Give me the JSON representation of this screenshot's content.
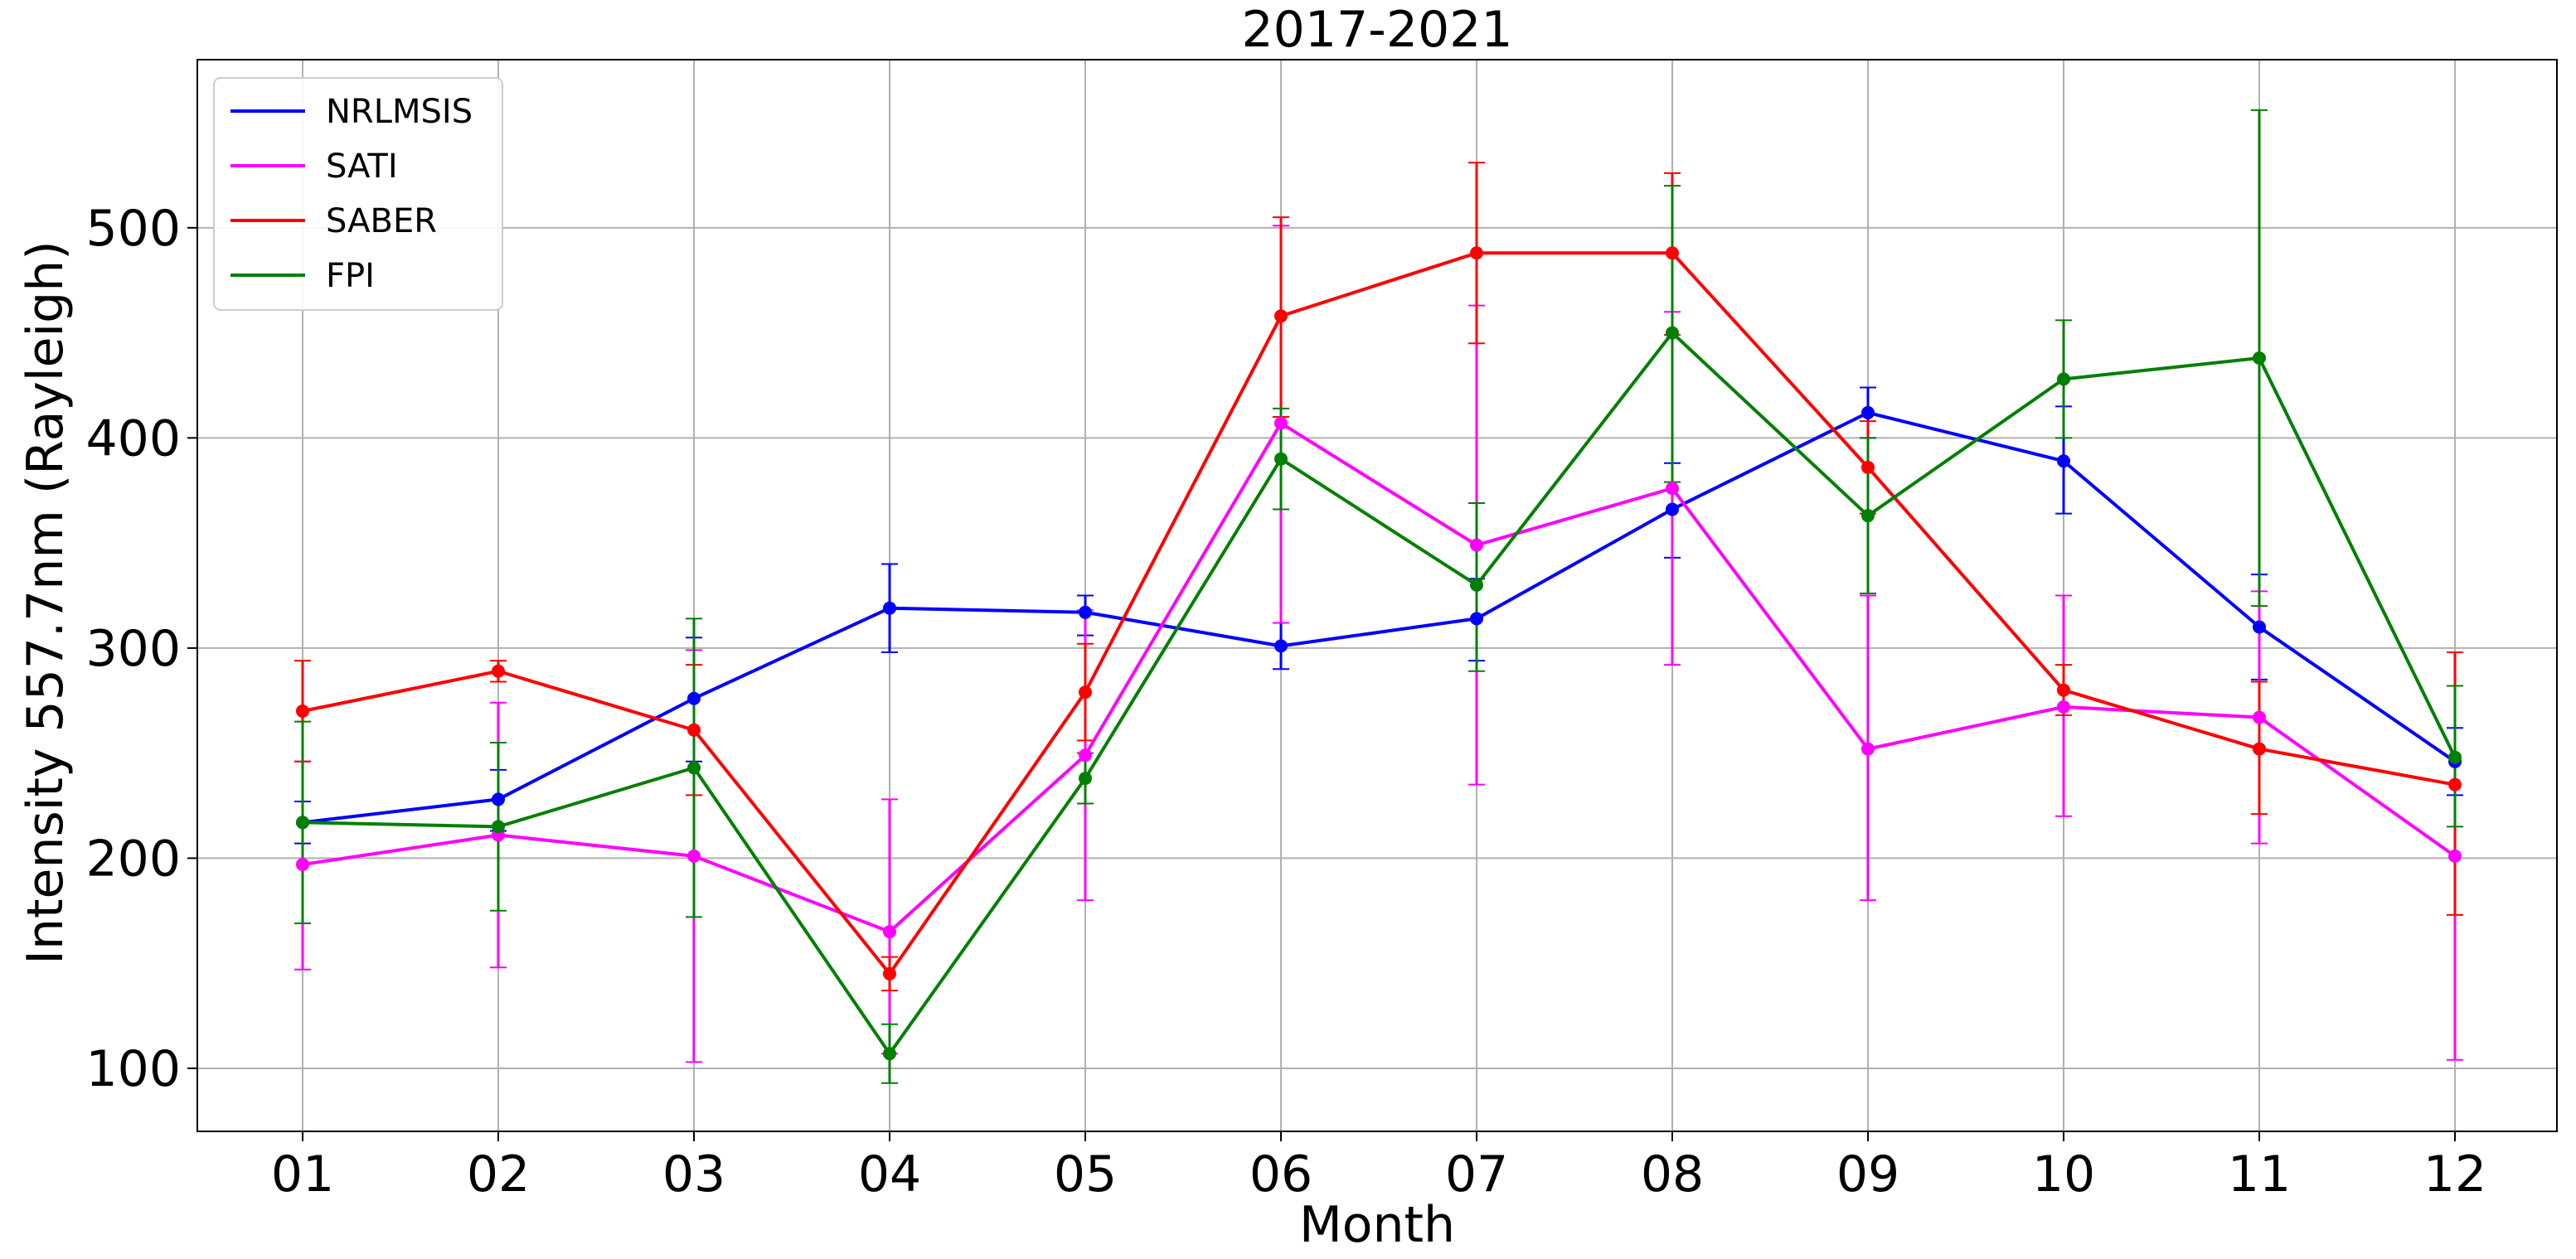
{
  "chart_data": {
    "type": "line",
    "title": "2017-2021",
    "xlabel": "Month",
    "ylabel": "Intensity 557.7nm (Rayleigh)",
    "categories": [
      "01",
      "02",
      "03",
      "04",
      "05",
      "06",
      "07",
      "08",
      "09",
      "10",
      "11",
      "12"
    ],
    "ylim": [
      70,
      580
    ],
    "yticks": [
      100,
      200,
      300,
      400,
      500
    ],
    "grid": true,
    "legend_position": "top-left",
    "series": [
      {
        "name": "NRLMSIS",
        "color": "#0000ff",
        "values": [
          217,
          228,
          276,
          319,
          317,
          301,
          314,
          366,
          412,
          389,
          310,
          246
        ],
        "err_low": [
          207,
          213,
          246,
          298,
          306,
          290,
          294,
          343,
          400,
          364,
          285,
          230
        ],
        "err_high": [
          227,
          242,
          305,
          340,
          325,
          312,
          333,
          388,
          424,
          415,
          335,
          262
        ]
      },
      {
        "name": "SATI",
        "color": "#ff00ff",
        "values": [
          197,
          211,
          201,
          165,
          249,
          407,
          349,
          376,
          252,
          272,
          267,
          201
        ],
        "err_low": [
          147,
          148,
          103,
          107,
          180,
          312,
          235,
          292,
          180,
          220,
          207,
          104
        ],
        "err_high": [
          246,
          274,
          299,
          228,
          318,
          501,
          463,
          460,
          325,
          325,
          327,
          298
        ]
      },
      {
        "name": "SABER",
        "color": "#ff0000",
        "values": [
          270,
          289,
          261,
          145,
          279,
          458,
          488,
          488,
          386,
          280,
          252,
          235
        ],
        "err_low": [
          246,
          284,
          230,
          137,
          256,
          410,
          445,
          449,
          364,
          268,
          221,
          173
        ],
        "err_high": [
          294,
          294,
          292,
          153,
          302,
          505,
          531,
          526,
          408,
          292,
          284,
          298
        ]
      },
      {
        "name": "FPI",
        "color": "#008000",
        "values": [
          217,
          215,
          243,
          107,
          238,
          390,
          330,
          450,
          363,
          428,
          438,
          248
        ],
        "err_low": [
          169,
          175,
          172,
          93,
          226,
          366,
          289,
          379,
          326,
          400,
          320,
          215
        ],
        "err_high": [
          265,
          255,
          314,
          121,
          250,
          414,
          369,
          520,
          400,
          456,
          556,
          282
        ]
      }
    ]
  }
}
